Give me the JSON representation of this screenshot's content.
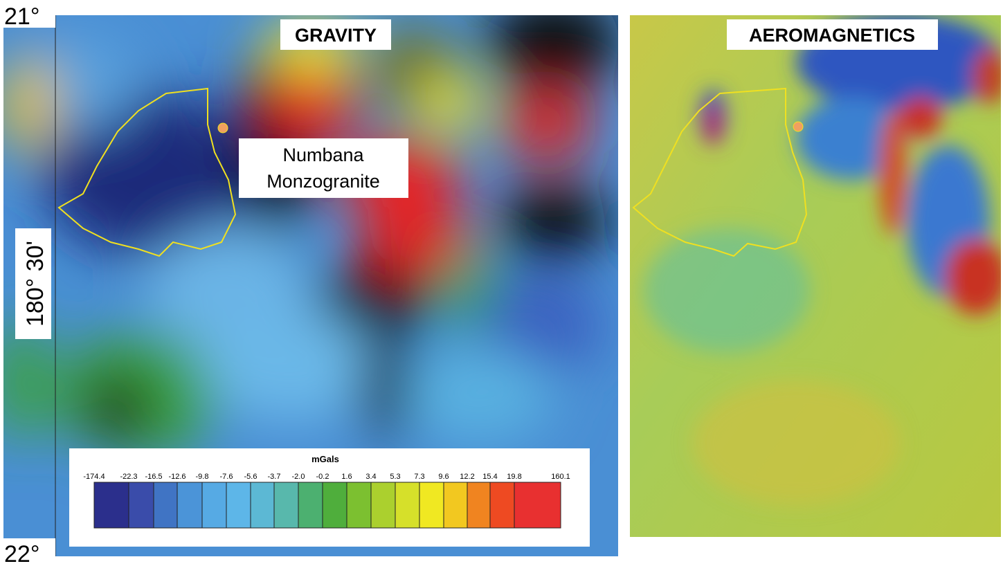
{
  "labels": {
    "lat_top": "21°",
    "lat_bottom": "22°",
    "lon": "180° 30'"
  },
  "gravity": {
    "title": "GRAVITY",
    "feature": [
      "Numbana",
      "Monzogranite"
    ]
  },
  "aeromagnetics": {
    "title": "AEROMAGNETICS"
  },
  "legend": {
    "title": "mGals",
    "labels": [
      "-174.4",
      "-22.3",
      "-16.5",
      "-12.6",
      "-9.8",
      "-7.6",
      "-5.6",
      "-3.7",
      "-2.0",
      "-0.2",
      "1.6",
      "3.4",
      "5.3",
      "7.3",
      "9.6",
      "12.2",
      "15.4",
      "19.8",
      "160.1"
    ],
    "colors": [
      "#2b2f8c",
      "#3a4caa",
      "#4074c4",
      "#4b94d8",
      "#56aae4",
      "#5db6e8",
      "#5cb8d4",
      "#58b8ac",
      "#4cb070",
      "#4fae3c",
      "#7cc030",
      "#abd02e",
      "#d6e02a",
      "#f0e822",
      "#f2c820",
      "#f08420",
      "#ee4a22",
      "#e83030"
    ]
  }
}
